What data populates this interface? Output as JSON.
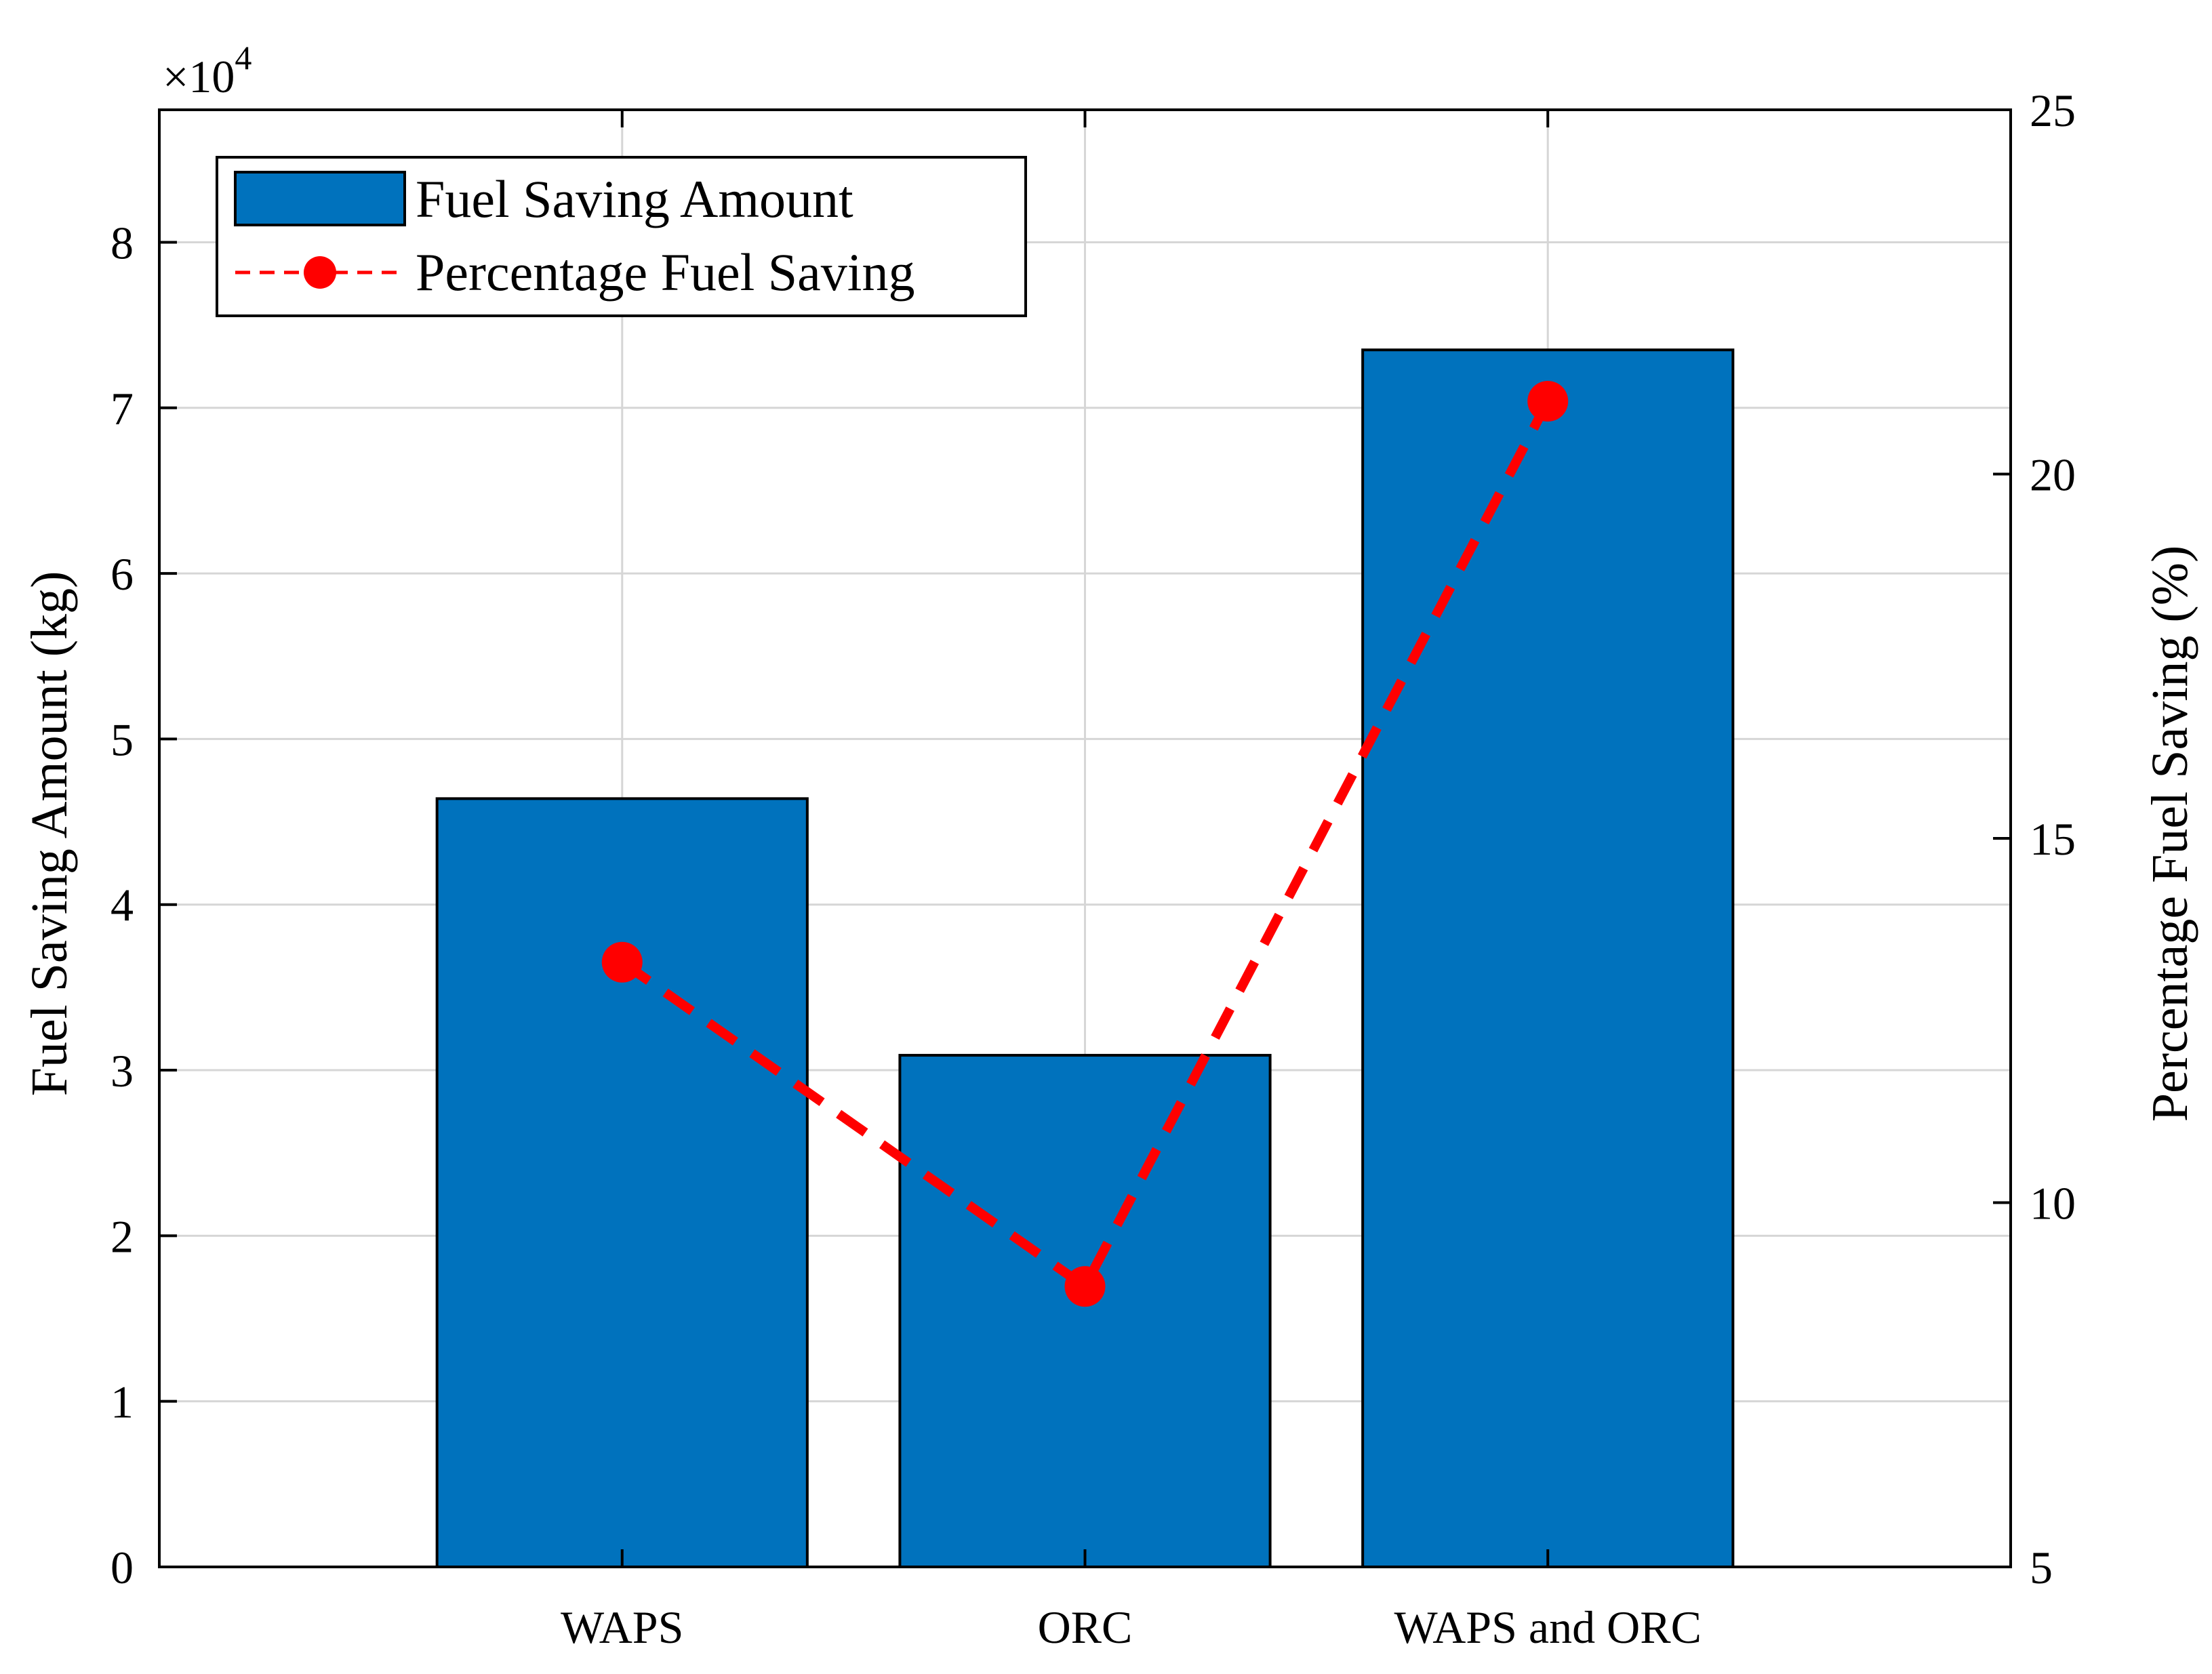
{
  "chart_data": {
    "type": "bar",
    "categories": [
      "WAPS",
      "ORC",
      "WAPS and ORC"
    ],
    "series": [
      {
        "name": "Fuel Saving Amount",
        "axis": "left",
        "kind": "bar",
        "values": [
          46400,
          30900,
          73500
        ],
        "color": "#0072BD"
      },
      {
        "name": "Percentage Fuel Saving",
        "axis": "right",
        "kind": "line",
        "values": [
          13.3,
          8.85,
          21.0
        ],
        "color": "#FF0000",
        "style": "dashed",
        "marker": "circle"
      }
    ],
    "xlim": [
      0,
      4
    ],
    "ylabel": "Fuel Saving Amount (kg)",
    "ylim": [
      0,
      88000
    ],
    "yticks": [
      0,
      1,
      2,
      3,
      4,
      5,
      6,
      7,
      8
    ],
    "y_multiplier": {
      "base": "×10",
      "exponent": "4"
    },
    "y2label": "Percentage Fuel Saving (%)",
    "y2lim": [
      5,
      25
    ],
    "y2ticks": [
      5,
      10,
      15,
      20,
      25
    ],
    "grid": true,
    "legend_position": "top-left"
  }
}
